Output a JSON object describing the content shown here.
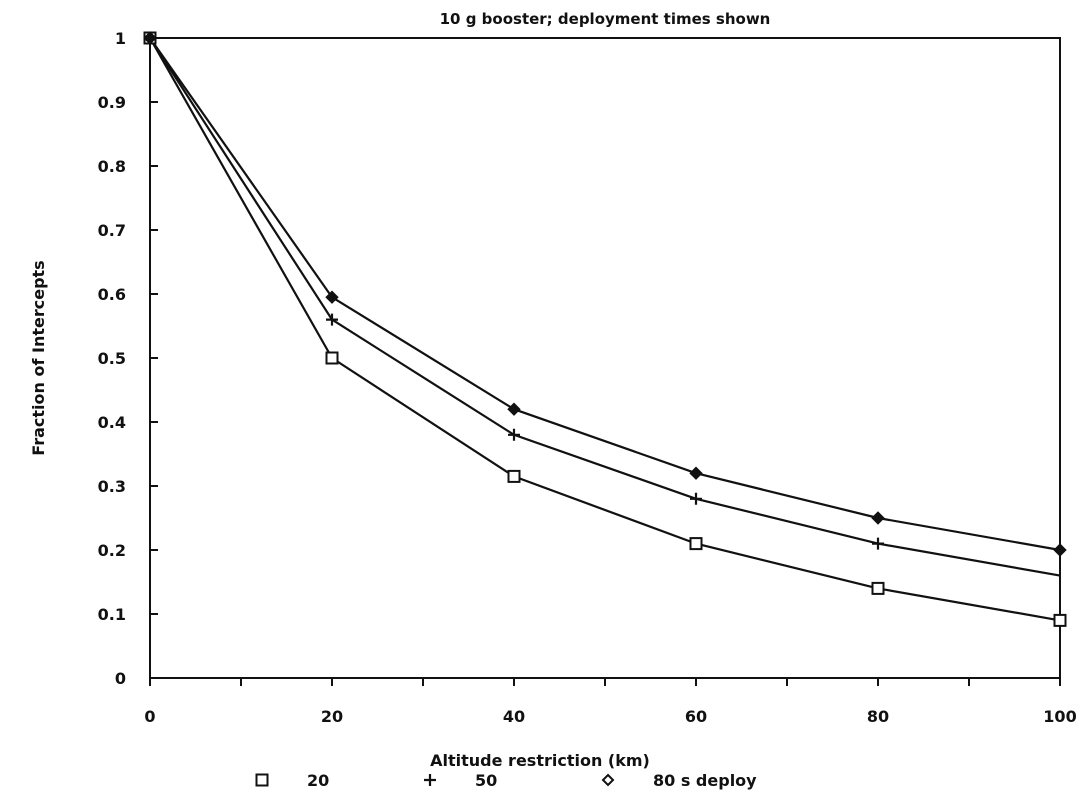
{
  "chart_data": {
    "type": "line",
    "title": "10 g booster; deployment times shown",
    "xlabel": "Altitude restriction (km)",
    "ylabel": "Fraction of Intercepts",
    "x": [
      0,
      20,
      40,
      60,
      80,
      100
    ],
    "xlim": [
      0,
      100
    ],
    "ylim": [
      0,
      1
    ],
    "x_ticks": [
      "0",
      "20",
      "40",
      "60",
      "80",
      "100"
    ],
    "y_ticks": [
      "0",
      "0.1",
      "0.2",
      "0.3",
      "0.4",
      "0.5",
      "0.6",
      "0.7",
      "0.8",
      "0.9",
      "1"
    ],
    "grid": false,
    "legend_position": "bottom",
    "series": [
      {
        "name": "20",
        "marker": "square",
        "values": [
          1.0,
          0.5,
          0.315,
          0.21,
          0.14,
          0.09
        ]
      },
      {
        "name": "50",
        "marker": "plus",
        "values": [
          1.0,
          0.56,
          0.38,
          0.28,
          0.21,
          0.16
        ]
      },
      {
        "name": "80 s deploy",
        "marker": "diamond",
        "values": [
          1.0,
          0.595,
          0.42,
          0.32,
          0.25,
          0.2
        ]
      }
    ],
    "line_color": "#111111"
  }
}
